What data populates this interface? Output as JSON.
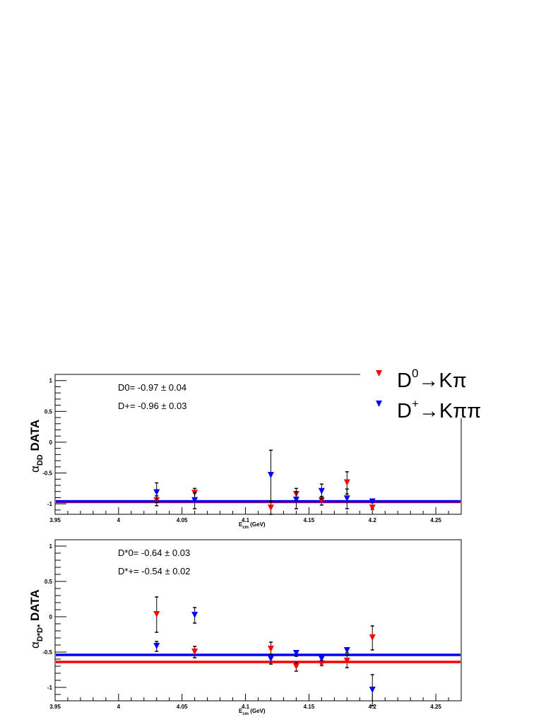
{
  "chart_data": [
    {
      "type": "scatter",
      "title": "",
      "xlabel": "E_cm (GeV)",
      "xlabel_main": "E",
      "xlabel_sub": "cm",
      "xlabel_unit": " (GeV)",
      "ylabel_main": "α",
      "ylabel_sub": "DD",
      "ylabel_tail": " DATA",
      "xlim": [
        3.95,
        4.27
      ],
      "ylim": [
        -1.17,
        1.1
      ],
      "xticks": [
        "3.95",
        "4",
        "4.05",
        "4.1",
        "4.15",
        "4.2",
        "4.25"
      ],
      "yticks": [
        "1",
        "0.5",
        "0",
        "-0.5",
        "-1"
      ],
      "annotations": [
        "D0= -0.97 ± 0.04",
        "D+= -0.96 ± 0.03"
      ],
      "series": [
        {
          "name": "D0→Kπ",
          "color": "#ff0000",
          "fit": -0.97,
          "x": [
            4.03,
            4.06,
            4.12,
            4.14,
            4.16,
            4.18,
            4.2
          ],
          "y": [
            -0.95,
            -0.83,
            -1.07,
            -0.85,
            -0.95,
            -0.66,
            -1.07
          ],
          "err": [
            0.08,
            0.08,
            0.1,
            0.1,
            0.07,
            0.18,
            0.02
          ]
        },
        {
          "name": "D+→Kππ",
          "color": "#0000ff",
          "fit": -0.96,
          "x": [
            4.03,
            4.06,
            4.12,
            4.14,
            4.16,
            4.18,
            4.2
          ],
          "y": [
            -0.82,
            -0.95,
            -0.54,
            -0.94,
            -0.8,
            -0.92,
            -0.97
          ],
          "err": [
            0.16,
            0.13,
            0.41,
            0.14,
            0.12,
            0.16,
            0.01
          ]
        }
      ]
    },
    {
      "type": "scatter",
      "title": "",
      "xlabel": "E_cm (GeV)",
      "xlabel_main": "E",
      "xlabel_sub": "cm",
      "xlabel_unit": " (GeV)",
      "ylabel_main": "α",
      "ylabel_sub": "D*D*",
      "ylabel_tail": " DATA",
      "xlim": [
        3.95,
        4.27
      ],
      "ylim": [
        -1.19,
        1.09
      ],
      "xticks": [
        "3.95",
        "4",
        "4.05",
        "4.1",
        "4.15",
        "4.2",
        "4.25"
      ],
      "yticks": [
        "1",
        "0.5",
        "0",
        "-0.5",
        "-1"
      ],
      "annotations": [
        "D*0= -0.64 ± 0.03",
        "D*+= -0.54 ± 0.02"
      ],
      "series": [
        {
          "name": "D*0",
          "color": "#ff0000",
          "fit": -0.64,
          "x": [
            4.03,
            4.06,
            4.12,
            4.14,
            4.16,
            4.18,
            4.2
          ],
          "y": [
            0.03,
            -0.5,
            -0.46,
            -0.71,
            -0.67,
            -0.63,
            -0.3
          ],
          "err": [
            0.25,
            0.08,
            0.1,
            0.06,
            0.02,
            0.09,
            0.17
          ]
        },
        {
          "name": "D*+",
          "color": "#0000ff",
          "fit": -0.54,
          "x": [
            4.03,
            4.06,
            4.12,
            4.14,
            4.16,
            4.18,
            4.2
          ],
          "y": [
            -0.42,
            0.02,
            -0.6,
            -0.52,
            -0.6,
            -0.48,
            -1.04
          ],
          "err": [
            0.07,
            0.11,
            0.07,
            0.04,
            0.02,
            0.03,
            0.22
          ]
        }
      ]
    }
  ],
  "legend": {
    "items": [
      {
        "base": "D",
        "sup": "0",
        "rest": "→Kπ",
        "color": "#ff0000"
      },
      {
        "base": "D",
        "sup": "+",
        "rest": "→Kππ",
        "color": "#0000ff"
      }
    ],
    "placement": "top-right"
  }
}
